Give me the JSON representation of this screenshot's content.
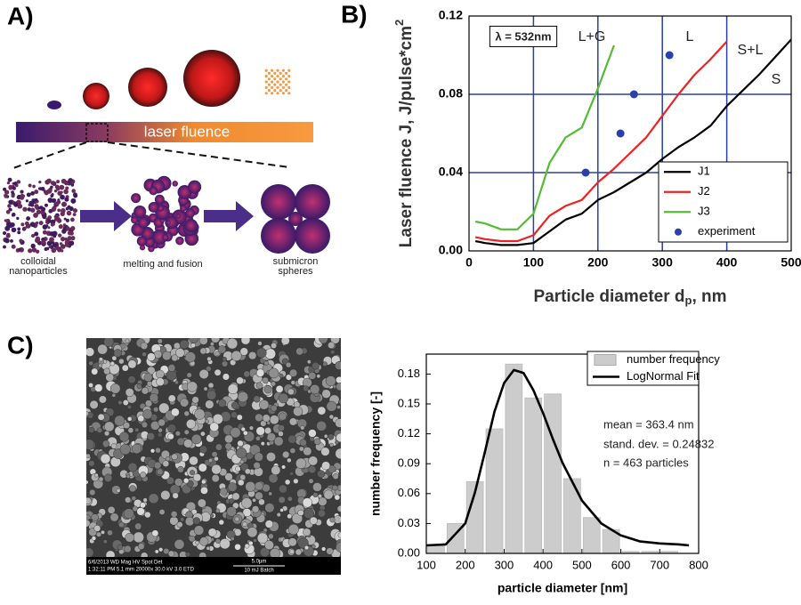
{
  "panel_labels": [
    "A)",
    "B)",
    "C)"
  ],
  "diagram": {
    "bar_label": "laser fluence",
    "stages": [
      {
        "lines": [
          "colloidal",
          "nanoparticles"
        ]
      },
      {
        "lines": [
          "melting and fusion"
        ]
      },
      {
        "lines": [
          "submicron",
          "spheres"
        ]
      }
    ]
  },
  "sem_image": {
    "info": [
      "6/6/2013     WD      Mag      HV    Spot  Det",
      "1:32:11 PM 5.1 mm 20000x 30.0 kV 3.0  ETD"
    ],
    "scale": "5.0μm",
    "batch": "10 mJ Batch"
  },
  "chart_data": [
    {
      "type": "line",
      "xlabel": {
        "text": "Particle diameter d",
        "sub": "p",
        "tail": ", nm"
      },
      "ylabel": {
        "text": "Laser fluence J, J/pulse*cm",
        "sup": "2"
      },
      "x": [
        10,
        25,
        50,
        75,
        100,
        125,
        150,
        175,
        200,
        225,
        250,
        275,
        300,
        325,
        350,
        375,
        400,
        425,
        450,
        475,
        500
      ],
      "series": [
        {
          "name": "J1",
          "color": "#000000",
          "mode": "lines",
          "values": [
            0.005,
            0.004,
            0.003,
            0.003,
            0.004,
            0.01,
            0.016,
            0.019,
            0.026,
            0.03,
            0.035,
            0.04,
            0.047,
            0.053,
            0.058,
            0.064,
            0.074,
            0.082,
            0.09,
            0.099,
            0.108
          ]
        },
        {
          "name": "J2",
          "color": "#ee2222",
          "mode": "lines",
          "values": [
            0.007,
            0.006,
            0.005,
            0.005,
            0.008,
            0.018,
            0.023,
            0.026,
            0.035,
            0.042,
            0.05,
            0.058,
            0.069,
            0.08,
            0.09,
            0.098,
            0.107,
            null,
            null,
            null,
            null
          ]
        },
        {
          "name": "J3",
          "color": "#55bb33",
          "mode": "lines",
          "values": [
            0.015,
            0.014,
            0.011,
            0.011,
            0.019,
            0.045,
            0.058,
            0.063,
            0.083,
            0.105,
            null,
            null,
            null,
            null,
            null,
            null,
            null,
            null,
            null,
            null,
            null
          ]
        },
        {
          "name": "experiment",
          "color": "#2a3fa8",
          "mode": "markers",
          "x": [
            181,
            235,
            256,
            311
          ],
          "values": [
            0.04,
            0.06,
            0.08,
            0.1
          ]
        }
      ],
      "xlim": [
        0,
        500
      ],
      "xticks": [
        0,
        100,
        200,
        300,
        400,
        500
      ],
      "ylim": [
        0,
        0.12
      ],
      "yticks": [
        {
          "value": 0,
          "label": "0.00"
        },
        0.04,
        0.08,
        0.12
      ],
      "grid": true,
      "grid_color": "#2a3fa8",
      "legend": "lower right",
      "annotations": [
        "λ = 532nm",
        "L+G",
        "L",
        "S+L",
        "S"
      ]
    },
    {
      "type": "histogram",
      "xlabel": "particle diameter [nm]",
      "ylabel": "number frequency [-]",
      "series": [
        {
          "name": "number frequency",
          "type": "histogram",
          "color": "#cccccc",
          "bins": [
            100,
            150,
            200,
            250,
            300,
            350,
            400,
            450,
            500,
            550,
            600,
            650,
            700,
            750
          ],
          "values": [
            0.008,
            0.03,
            0.072,
            0.125,
            0.19,
            0.156,
            0.16,
            0.075,
            0.036,
            0.024,
            0.002,
            0.002,
            0.002
          ]
        },
        {
          "name": "LogNormal Fit",
          "type": "line",
          "color": "#000000",
          "x": [
            100,
            150,
            200,
            225,
            250,
            275,
            300,
            325,
            350,
            375,
            400,
            425,
            450,
            500,
            550,
            600,
            650,
            700,
            750,
            775
          ],
          "values": [
            0.008,
            0.009,
            0.03,
            0.061,
            0.101,
            0.142,
            0.171,
            0.184,
            0.181,
            0.164,
            0.141,
            0.115,
            0.091,
            0.053,
            0.03,
            0.018,
            0.012,
            0.01,
            0.009,
            0.008
          ]
        }
      ],
      "xlim": [
        100,
        800
      ],
      "xticks": [
        100,
        200,
        300,
        400,
        500,
        600,
        700,
        800
      ],
      "ylim": [
        0,
        0.2
      ],
      "yticks": [
        {
          "value": 0,
          "label": "0.00"
        },
        0.03,
        0.06,
        0.09,
        0.12,
        0.15,
        0.18
      ],
      "grid": false,
      "legend": "upper right",
      "annotations": [
        "mean = 363.4 nm",
        "stand. dev. = 0.24832",
        "n = 463 particles"
      ]
    }
  ]
}
